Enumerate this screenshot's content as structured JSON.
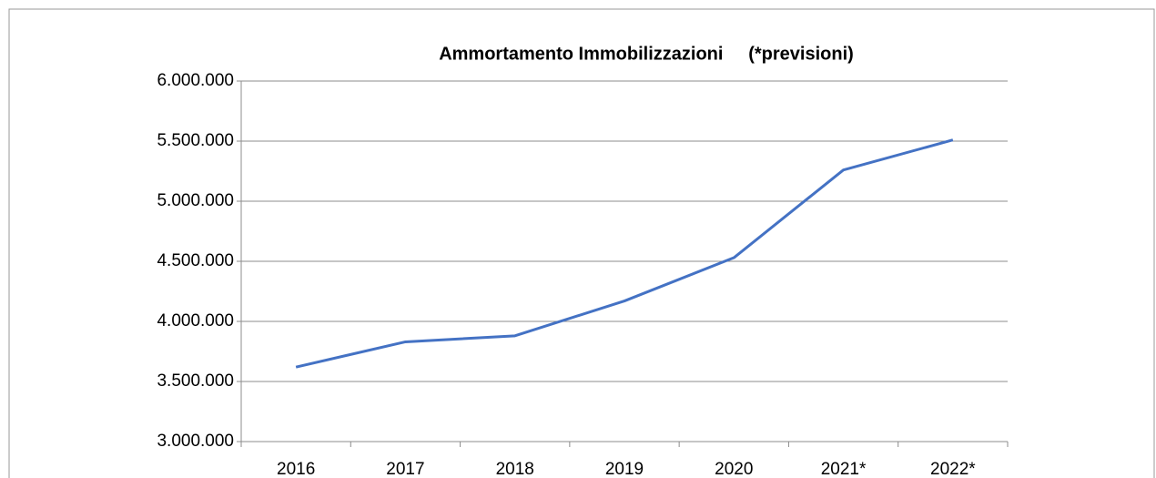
{
  "chart_data": {
    "type": "line",
    "title": "Ammortamento Immobilizzazioni     (*previsioni)",
    "categories": [
      "2016",
      "2017",
      "2018",
      "2019",
      "2020",
      "2021*",
      "2022*"
    ],
    "series": [
      {
        "name": "Ammortamento Immobilizzazioni",
        "color": "#4472c4",
        "values": [
          3620000,
          3830000,
          3880000,
          4170000,
          4530000,
          5260000,
          5510000
        ]
      }
    ],
    "ylim": [
      3000000,
      6000000
    ],
    "yticks": [
      {
        "value": 3000000,
        "label": "3.000.000"
      },
      {
        "value": 3500000,
        "label": "3.500.000"
      },
      {
        "value": 4000000,
        "label": "4.000.000"
      },
      {
        "value": 4500000,
        "label": "4.500.000"
      },
      {
        "value": 5000000,
        "label": "5.000.000"
      },
      {
        "value": 5500000,
        "label": "5.500.000"
      },
      {
        "value": 6000000,
        "label": "6.000.000"
      }
    ],
    "grid": true
  }
}
